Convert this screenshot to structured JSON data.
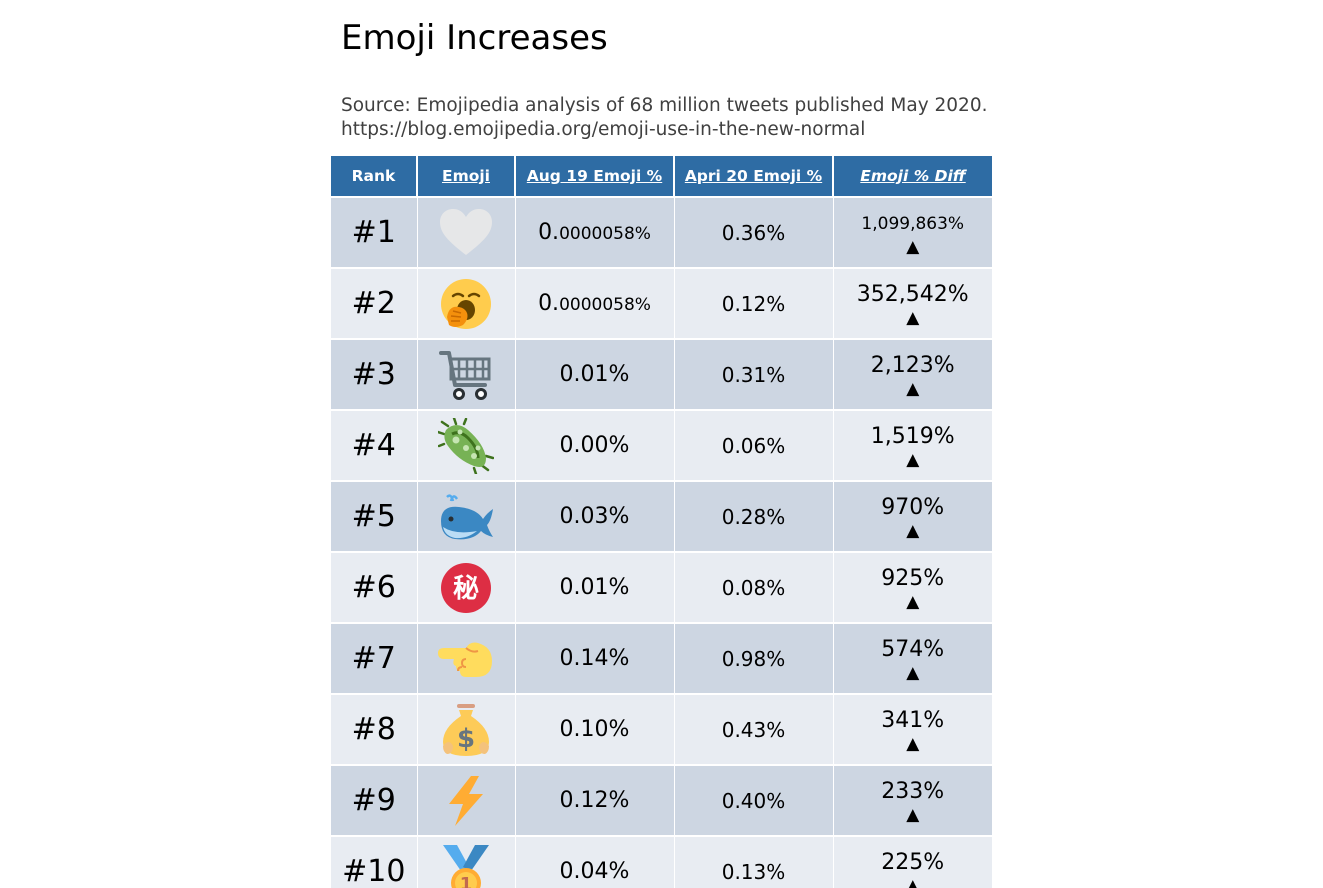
{
  "title": "Emoji Increases",
  "source_line1": "Source: Emojipedia analysis of 68 million tweets published May 2020.",
  "source_line2": "https://blog.emojipedia.org/emoji-use-in-the-new-normal",
  "headers": {
    "rank": "Rank",
    "emoji": "Emoji",
    "aug": "Aug 19 Emoji %",
    "apr": "Apri 20 Emoji %",
    "diff": "Emoji % Diff"
  },
  "arrow": "▲",
  "rows": [
    {
      "rank": "#1",
      "icon": "white-heart-icon",
      "aug_lead": "0.",
      "aug_tail": "0000058%",
      "apr": "0.36%",
      "diff": "1,099,863%"
    },
    {
      "rank": "#2",
      "icon": "yawning-face-icon",
      "aug_lead": "0.",
      "aug_tail": "0000058%",
      "apr": "0.12%",
      "diff": "352,542%"
    },
    {
      "rank": "#3",
      "icon": "shopping-cart-icon",
      "aug": "0.01%",
      "apr": "0.31%",
      "diff": "2,123%"
    },
    {
      "rank": "#4",
      "icon": "microbe-icon",
      "aug": "0.00%",
      "apr": "0.06%",
      "diff": "1,519%"
    },
    {
      "rank": "#5",
      "icon": "spouting-whale-icon",
      "aug": "0.03%",
      "apr": "0.28%",
      "diff": "970%"
    },
    {
      "rank": "#6",
      "icon": "japanese-secret-button-icon",
      "icon_glyph": "秘",
      "aug": "0.01%",
      "apr": "0.08%",
      "diff": "925%"
    },
    {
      "rank": "#7",
      "icon": "backhand-index-pointing-left-icon",
      "aug": "0.14%",
      "apr": "0.98%",
      "diff": "574%"
    },
    {
      "rank": "#8",
      "icon": "money-bag-icon",
      "icon_glyph": "$",
      "aug": "0.10%",
      "apr": "0.43%",
      "diff": "341%"
    },
    {
      "rank": "#9",
      "icon": "high-voltage-icon",
      "aug": "0.12%",
      "apr": "0.40%",
      "diff": "233%"
    },
    {
      "rank": "#10",
      "icon": "first-place-medal-icon",
      "icon_glyph": "1",
      "aug": "0.04%",
      "apr": "0.13%",
      "diff": "225%"
    }
  ],
  "colors": {
    "header_bg": "#2e6ca4",
    "row_odd": "#cdd6e2",
    "row_even": "#e8ecf2"
  }
}
